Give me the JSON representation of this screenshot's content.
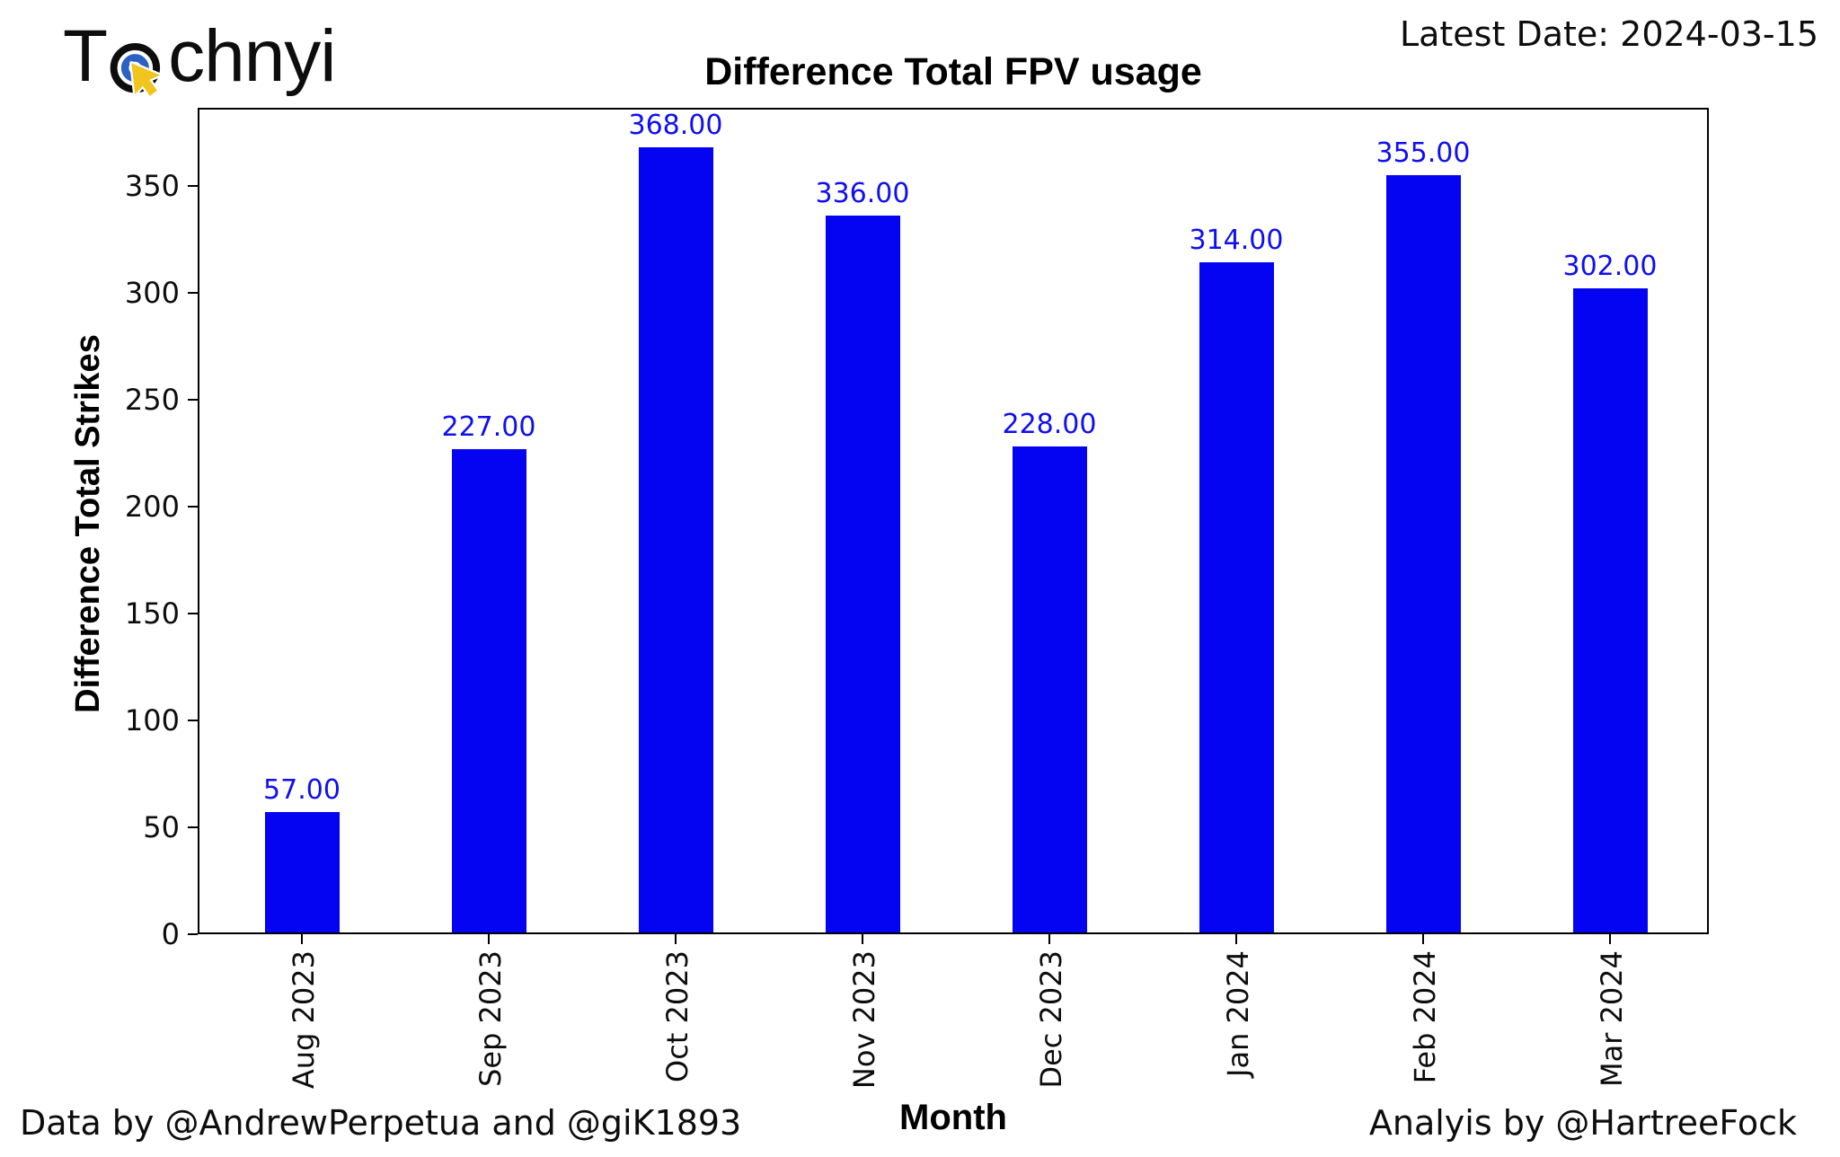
{
  "logo": {
    "text_prefix": "T",
    "text_suffix": "chnyi",
    "icon": "cursor-target-icon",
    "icon_colors": {
      "ring_outer": "#0d0d0d",
      "ring_inner": "#2b63c4",
      "cursor": "#f2c41e"
    }
  },
  "header": {
    "latest_date": "Latest Date: 2024-03-15"
  },
  "footer": {
    "left": "Data by @AndrewPerpetua and @giK1893",
    "right": "Analyis by @HartreeFock"
  },
  "chart_data": {
    "type": "bar",
    "title": "Difference Total FPV usage",
    "xlabel": "Month",
    "ylabel": "Difference Total Strikes",
    "categories": [
      "Aug 2023",
      "Sep 2023",
      "Oct 2023",
      "Nov 2023",
      "Dec 2023",
      "Jan 2024",
      "Feb 2024",
      "Mar 2024"
    ],
    "values": [
      57,
      227,
      368,
      336,
      228,
      314,
      355,
      302
    ],
    "bar_labels": [
      "57.00",
      "227.00",
      "368.00",
      "336.00",
      "228.00",
      "314.00",
      "355.00",
      "302.00"
    ],
    "yticks": [
      0,
      50,
      100,
      150,
      200,
      250,
      300,
      350
    ],
    "ylim": [
      0,
      386.4
    ],
    "grid": false,
    "legend_position": "none",
    "bar_color": "#0404f2",
    "value_label_color": "#0f0ff0",
    "frame_color": "#000000"
  }
}
